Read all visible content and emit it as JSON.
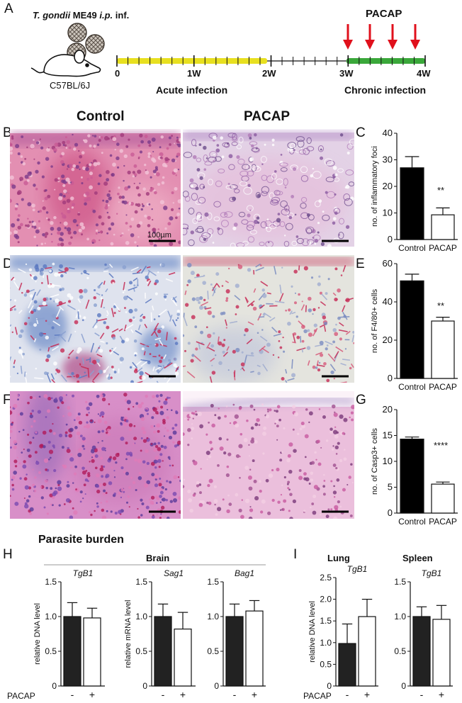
{
  "panel_letters": {
    "A": "A",
    "B": "B",
    "C": "C",
    "D": "D",
    "E": "E",
    "F": "F",
    "G": "G",
    "H": "H",
    "I": "I"
  },
  "timeline": {
    "infection_label_italic": "T. gondii",
    "infection_label_rest": " ME49 ",
    "infection_route_italic": "i.p.",
    "infection_suffix": " inf.",
    "mouse_strain": "C57BL/6J",
    "treatment_label": "PACAP",
    "ticks": [
      "0",
      "1W",
      "2W",
      "3W",
      "4W"
    ],
    "phase_acute": "Acute infection",
    "phase_chronic": "Chronic infection",
    "colors": {
      "acute": "#e8e020",
      "chronic": "#3aa83a",
      "arrow": "#e0101c"
    }
  },
  "histology": {
    "col_control": "Control",
    "col_pacap": "PACAP",
    "scale_bar": "100µm",
    "colors": {
      "he_pink": "#e38fb2",
      "he_light": "#e3d2e6",
      "ihc_bg": "#dfe3ee",
      "ihc_blue": "#6e8cc8",
      "ihc_red": "#c52a55",
      "casp_bg": "#d88fc8",
      "casp_light": "#ebbfdc"
    }
  },
  "significance": {
    "C": "**",
    "E": "**",
    "G": "****"
  },
  "section_title": "Parasite burden",
  "brain_header": "Brain",
  "lung_header": "Lung",
  "spleen_header": "Spleen",
  "pacap_row_label": "PACAP",
  "chart_data": [
    {
      "panel": "C",
      "type": "bar",
      "categories": [
        "Control",
        "PACAP"
      ],
      "values": [
        27.0,
        9.3
      ],
      "errors": [
        4.2,
        2.6
      ],
      "ylabel": "no. of inflammatory foci",
      "ylim": [
        0,
        40
      ],
      "yticks": [
        "0",
        "10",
        "20",
        "30",
        "40"
      ],
      "fills": [
        "#000000",
        "#ffffff"
      ]
    },
    {
      "panel": "E",
      "type": "bar",
      "categories": [
        "Control",
        "PACAP"
      ],
      "values": [
        51.0,
        30.0
      ],
      "errors": [
        3.5,
        2.0
      ],
      "ylabel": "no. of F4/80+ cells",
      "ylim": [
        0,
        60
      ],
      "yticks": [
        "0",
        "20",
        "40",
        "60"
      ],
      "fills": [
        "#000000",
        "#ffffff"
      ]
    },
    {
      "panel": "G",
      "type": "bar",
      "categories": [
        "Control",
        "PACAP"
      ],
      "values": [
        14.3,
        5.6
      ],
      "errors": [
        0.4,
        0.4
      ],
      "ylabel": "no. of Casp3+ cells",
      "ylim": [
        0,
        20
      ],
      "yticks": [
        "0",
        "5",
        "10",
        "15",
        "20"
      ],
      "fills": [
        "#000000",
        "#ffffff"
      ]
    },
    {
      "panel": "H1",
      "type": "bar",
      "gene": "TgB1",
      "categories": [
        "-",
        "+"
      ],
      "values": [
        1.0,
        0.98
      ],
      "errors": [
        0.2,
        0.14
      ],
      "ylabel": "relative DNA level",
      "ylim": [
        0,
        1.5
      ],
      "yticks": [
        "0",
        "0.5",
        "1.0",
        "1.5"
      ],
      "fills": [
        "#222222",
        "#ffffff"
      ]
    },
    {
      "panel": "H2",
      "type": "bar",
      "gene": "Sag1",
      "categories": [
        "-",
        "+"
      ],
      "values": [
        1.0,
        0.82
      ],
      "errors": [
        0.18,
        0.24
      ],
      "ylabel": "relative mRNA level",
      "ylim": [
        0,
        1.5
      ],
      "yticks": [
        "0",
        "0.5",
        "1.0",
        "1.5"
      ],
      "fills": [
        "#222222",
        "#ffffff"
      ]
    },
    {
      "panel": "H3",
      "type": "bar",
      "gene": "Bag1",
      "categories": [
        "-",
        "+"
      ],
      "values": [
        1.0,
        1.08
      ],
      "errors": [
        0.18,
        0.15
      ],
      "ylabel": "",
      "ylim": [
        0,
        1.5
      ],
      "yticks": [
        "0",
        "0.5",
        "1.0",
        "1.5"
      ],
      "fills": [
        "#222222",
        "#ffffff"
      ]
    },
    {
      "panel": "I1",
      "type": "bar",
      "gene": "TgB1",
      "categories": [
        "-",
        "+"
      ],
      "values": [
        0.98,
        1.6
      ],
      "errors": [
        0.45,
        0.4
      ],
      "ylabel": "relative DNA level",
      "ylim": [
        0,
        2.5
      ],
      "yticks": [
        "0",
        "0.5",
        "1.0",
        "1.5",
        "2.0",
        "2.5"
      ],
      "fills": [
        "#222222",
        "#ffffff"
      ]
    },
    {
      "panel": "I2",
      "type": "bar",
      "gene": "TgB1",
      "categories": [
        "-",
        "+"
      ],
      "values": [
        1.0,
        0.96
      ],
      "errors": [
        0.14,
        0.2
      ],
      "ylabel": "",
      "ylim": [
        0,
        1.5
      ],
      "yticks": [
        "0",
        "0.5",
        "1.0",
        "1.5"
      ],
      "fills": [
        "#222222",
        "#ffffff"
      ]
    }
  ]
}
